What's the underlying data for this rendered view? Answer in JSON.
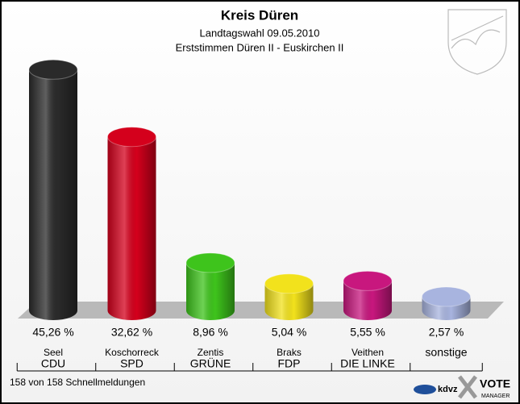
{
  "chart_data": {
    "type": "bar3d",
    "title": "Kreis Düren",
    "subtitle": "Landtagswahl 09.05.2010",
    "subtitle2": "Erststimmen Düren II - Euskirchen II",
    "candidates": [
      "Seel",
      "Koschorreck",
      "Zentis",
      "Braks",
      "Veithen",
      null
    ],
    "categories": [
      "CDU",
      "SPD",
      "GRÜNE",
      "FDP",
      "DIE LINKE",
      "sonstige"
    ],
    "values": [
      45.26,
      32.62,
      8.96,
      5.04,
      5.55,
      2.57
    ],
    "value_labels": [
      "45,26 %",
      "32,62 %",
      "8,96 %",
      "5,04 %",
      "5,55 %",
      "2,57 %"
    ],
    "colors": [
      "#2a2a2a",
      "#d4001c",
      "#3ec41c",
      "#f2e21c",
      "#c8177e",
      "#a8b4df"
    ],
    "footer": "158 von 158 Schnellmeldungen",
    "logo1": "kdvz",
    "logo2": "VOTE",
    "logo3": "MANAGER"
  }
}
